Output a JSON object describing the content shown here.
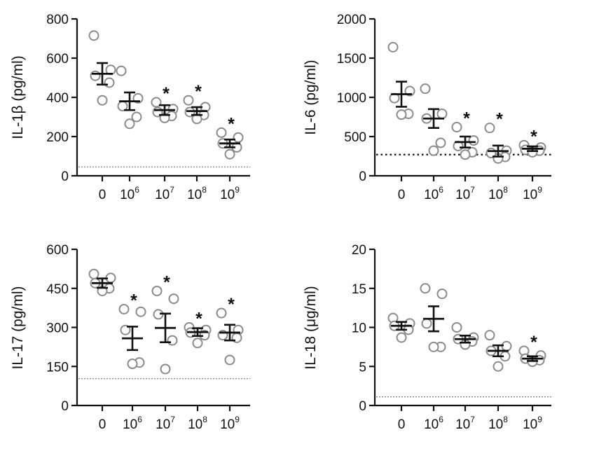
{
  "chart_data": [
    {
      "type": "scatter",
      "ylabel": "IL-1β (pg/ml)",
      "ylim": [
        0,
        800
      ],
      "yticks": [
        "0",
        "200",
        "400",
        "600",
        "800"
      ],
      "yticks_values": [
        0,
        200,
        400,
        600,
        800
      ],
      "categories": [
        "0",
        "10^6",
        "10^7",
        "10^8",
        "10^9"
      ],
      "category_labels": [
        {
          "base": "0",
          "exp": ""
        },
        {
          "base": "10",
          "exp": "6"
        },
        {
          "base": "10",
          "exp": "7"
        },
        {
          "base": "10",
          "exp": "8"
        },
        {
          "base": "10",
          "exp": "9"
        }
      ],
      "points": [
        [
          715,
          540,
          510,
          475,
          385
        ],
        [
          535,
          395,
          355,
          300,
          265
        ],
        [
          375,
          340,
          325,
          305,
          295
        ],
        [
          385,
          350,
          325,
          310,
          290
        ],
        [
          220,
          195,
          165,
          145,
          110
        ]
      ],
      "mean": [
        520,
        380,
        335,
        330,
        165
      ],
      "sem": [
        55,
        45,
        25,
        20,
        20
      ],
      "significant": [
        "",
        "",
        "*",
        "*",
        "*"
      ],
      "dashed_line": 45,
      "line_style": "dotted-light"
    },
    {
      "type": "scatter",
      "ylabel": "IL-6 (pg/ml)",
      "ylim": [
        0,
        2000
      ],
      "yticks": [
        "0",
        "500",
        "1000",
        "1500",
        "2000"
      ],
      "yticks_values": [
        0,
        500,
        1000,
        1500,
        2000
      ],
      "categories": [
        "0",
        "10^6",
        "10^7",
        "10^8",
        "10^9"
      ],
      "category_labels": [
        {
          "base": "0",
          "exp": ""
        },
        {
          "base": "10",
          "exp": "6"
        },
        {
          "base": "10",
          "exp": "7"
        },
        {
          "base": "10",
          "exp": "8"
        },
        {
          "base": "10",
          "exp": "9"
        }
      ],
      "points": [
        [
          1640,
          1080,
          990,
          790,
          780
        ],
        [
          1110,
          790,
          730,
          420,
          320
        ],
        [
          620,
          450,
          380,
          300,
          270
        ],
        [
          610,
          320,
          290,
          240,
          220
        ],
        [
          390,
          360,
          330,
          320,
          300
        ]
      ],
      "mean": [
        1040,
        730,
        430,
        315,
        345
      ],
      "sem": [
        160,
        120,
        70,
        70,
        30
      ],
      "significant": [
        "",
        "",
        "*",
        "*",
        "*"
      ],
      "dashed_line": 270,
      "line_style": "dotted-dark"
    },
    {
      "type": "scatter",
      "ylabel": "IL-17 (pg/ml)",
      "ylim": [
        0,
        600
      ],
      "yticks": [
        "0",
        "150",
        "300",
        "450",
        "600"
      ],
      "yticks_values": [
        0,
        150,
        300,
        450,
        600
      ],
      "categories": [
        "0",
        "10^6",
        "10^7",
        "10^8",
        "10^9"
      ],
      "category_labels": [
        {
          "base": "0",
          "exp": ""
        },
        {
          "base": "10",
          "exp": "6"
        },
        {
          "base": "10",
          "exp": "7"
        },
        {
          "base": "10",
          "exp": "8"
        },
        {
          "base": "10",
          "exp": "9"
        }
      ],
      "points": [
        [
          505,
          490,
          470,
          450,
          440
        ],
        [
          370,
          360,
          290,
          165,
          160
        ],
        [
          440,
          410,
          350,
          250,
          140
        ],
        [
          300,
          290,
          280,
          270,
          240
        ],
        [
          355,
          290,
          270,
          260,
          175
        ]
      ],
      "mean": [
        470,
        258,
        298,
        282,
        280
      ],
      "sem": [
        18,
        45,
        55,
        15,
        30
      ],
      "significant": [
        "",
        "*",
        "*",
        "*",
        "*"
      ],
      "dashed_line": 103,
      "line_style": "dotted-light"
    },
    {
      "type": "scatter",
      "ylabel": "IL-18 (μg/ml)",
      "ylim": [
        0,
        20
      ],
      "yticks": [
        "0",
        "5",
        "10",
        "15",
        "20"
      ],
      "yticks_values": [
        0,
        5,
        10,
        15,
        20
      ],
      "categories": [
        "0",
        "10^6",
        "10^7",
        "10^8",
        "10^9"
      ],
      "category_labels": [
        {
          "base": "0",
          "exp": ""
        },
        {
          "base": "10",
          "exp": "6"
        },
        {
          "base": "10",
          "exp": "7"
        },
        {
          "base": "10",
          "exp": "8"
        },
        {
          "base": "10",
          "exp": "9"
        }
      ],
      "points": [
        [
          11.2,
          10.5,
          10.2,
          9.7,
          8.7
        ],
        [
          15.0,
          14.3,
          10.5,
          7.5,
          7.5
        ],
        [
          10.0,
          8.7,
          8.5,
          8.2,
          7.8
        ],
        [
          9.0,
          7.6,
          7.0,
          6.3,
          5.0
        ],
        [
          7.0,
          6.4,
          6.0,
          5.8,
          5.6
        ]
      ],
      "mean": [
        10.2,
        11.1,
        8.5,
        7.0,
        6.0
      ],
      "sem": [
        0.5,
        1.6,
        0.45,
        0.7,
        0.3
      ],
      "significant": [
        "",
        "",
        "",
        "",
        "*"
      ],
      "dashed_line": 1.1,
      "line_style": "dotted-light"
    }
  ]
}
